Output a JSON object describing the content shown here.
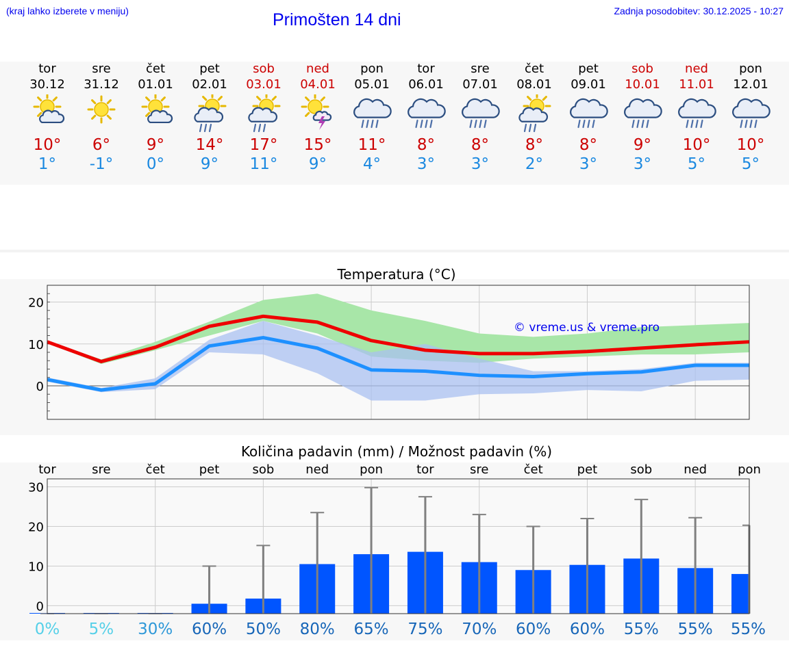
{
  "header": {
    "hint": "(kraj lahko izberete v meniju)",
    "title": "Primošten 14 dni",
    "updated": "Zadnja posodobitev: 30.12.2025 - 10:27"
  },
  "days": [
    {
      "name": "tor",
      "date": "30.12",
      "icon": "sun-cloud-icon",
      "tmax": "10°",
      "tmin": "1°",
      "weekend": false
    },
    {
      "name": "sre",
      "date": "31.12",
      "icon": "sun-icon",
      "tmax": "6°",
      "tmin": "-1°",
      "weekend": false
    },
    {
      "name": "čet",
      "date": "01.01",
      "icon": "sun-cloud-icon",
      "tmax": "9°",
      "tmin": "0°",
      "weekend": false
    },
    {
      "name": "pet",
      "date": "02.01",
      "icon": "sun-cloud-rain-icon",
      "tmax": "14°",
      "tmin": "9°",
      "weekend": false
    },
    {
      "name": "sob",
      "date": "03.01",
      "icon": "sun-cloud-rain-icon",
      "tmax": "17°",
      "tmin": "11°",
      "weekend": true
    },
    {
      "name": "ned",
      "date": "04.01",
      "icon": "sun-thunder-icon",
      "tmax": "15°",
      "tmin": "9°",
      "weekend": true
    },
    {
      "name": "pon",
      "date": "05.01",
      "icon": "cloud-rain-icon",
      "tmax": "11°",
      "tmin": "4°",
      "weekend": false
    },
    {
      "name": "tor",
      "date": "06.01",
      "icon": "cloud-rain-icon",
      "tmax": "8°",
      "tmin": "3°",
      "weekend": false
    },
    {
      "name": "sre",
      "date": "07.01",
      "icon": "cloud-rain-icon",
      "tmax": "8°",
      "tmin": "3°",
      "weekend": false
    },
    {
      "name": "čet",
      "date": "08.01",
      "icon": "sun-cloud-rain-icon",
      "tmax": "8°",
      "tmin": "2°",
      "weekend": false
    },
    {
      "name": "pet",
      "date": "09.01",
      "icon": "cloud-rain-icon",
      "tmax": "8°",
      "tmin": "3°",
      "weekend": false
    },
    {
      "name": "sob",
      "date": "10.01",
      "icon": "cloud-rain-icon",
      "tmax": "9°",
      "tmin": "3°",
      "weekend": true
    },
    {
      "name": "ned",
      "date": "11.01",
      "icon": "cloud-rain-icon",
      "tmax": "10°",
      "tmin": "5°",
      "weekend": true
    },
    {
      "name": "pon",
      "date": "12.01",
      "icon": "cloud-rain-icon",
      "tmax": "10°",
      "tmin": "5°",
      "weekend": false
    }
  ],
  "colors": {
    "max_line": "#ee0000",
    "min_line": "#1e90ff",
    "max_band": "#a8e6a8",
    "min_band": "#a9c0f0",
    "overlap_band": "#7cc4a4",
    "bar": "#0055ff",
    "errbar": "#808080",
    "weekend_text": "#cc0000",
    "min_text": "#1a88e0"
  },
  "chart_data": [
    {
      "type": "line",
      "title": "Temperatura (°C)",
      "watermark": "© vreme.us & vreme.pro",
      "x": [
        0,
        1,
        2,
        3,
        4,
        5,
        6,
        7,
        8,
        9,
        10,
        11,
        12,
        13
      ],
      "ylim": [
        -8,
        24
      ],
      "yticks": [
        0,
        10,
        20
      ],
      "series": [
        {
          "name": "max",
          "values": [
            10.5,
            5.8,
            9.2,
            14.2,
            16.6,
            15.2,
            10.8,
            8.5,
            7.7,
            7.7,
            8.2,
            9.0,
            9.8,
            10.5
          ],
          "band_low": [
            10.2,
            5.2,
            8.5,
            12.0,
            15.5,
            12.5,
            7.0,
            6.0,
            5.5,
            6.5,
            7.0,
            7.5,
            7.5,
            8.0
          ],
          "band_high": [
            10.8,
            6.3,
            10.5,
            15.3,
            20.5,
            22.0,
            18.0,
            15.5,
            12.5,
            11.7,
            12.5,
            14.0,
            14.5,
            15.0
          ]
        },
        {
          "name": "min",
          "values": [
            1.5,
            -1.0,
            0.5,
            9.5,
            11.5,
            9.0,
            3.8,
            3.5,
            2.5,
            2.2,
            2.9,
            3.3,
            4.9,
            4.9
          ],
          "band_low": [
            1.0,
            -1.5,
            -0.8,
            8.0,
            7.5,
            3.0,
            -3.5,
            -3.5,
            -2.0,
            -1.8,
            -1.0,
            -1.3,
            1.2,
            1.5
          ],
          "band_high": [
            2.0,
            -0.5,
            1.8,
            11.0,
            15.5,
            12.0,
            8.0,
            10.0,
            6.5,
            3.5,
            3.5,
            4.0,
            5.5,
            5.5
          ]
        }
      ]
    },
    {
      "type": "bar",
      "title": "Količina padavin (mm) / Možnost padavin (%)",
      "categories": [
        "tor",
        "sre",
        "čet",
        "pet",
        "sob",
        "ned",
        "pon",
        "tor",
        "sre",
        "čet",
        "pet",
        "sob",
        "ned",
        "pon"
      ],
      "values": [
        0,
        0,
        0,
        0.5,
        1.8,
        10.5,
        13.0,
        13.6,
        11.0,
        9.0,
        10.3,
        11.9,
        9.5,
        8.0
      ],
      "err_high": [
        0,
        0.1,
        0.1,
        10.0,
        15.2,
        23.5,
        29.8,
        27.5,
        23.0,
        20.0,
        22.0,
        26.8,
        22.2,
        20.3
      ],
      "probabilities": [
        "0%",
        "5%",
        "30%",
        "60%",
        "50%",
        "80%",
        "65%",
        "75%",
        "70%",
        "60%",
        "60%",
        "55%",
        "55%",
        "55%"
      ],
      "prob_colors": [
        "#55d0e8",
        "#55d0e8",
        "#2e98d8",
        "#1766b8",
        "#1766b8",
        "#1766b8",
        "#1766b8",
        "#1766b8",
        "#1766b8",
        "#1766b8",
        "#1766b8",
        "#1766b8",
        "#1766b8",
        "#1766b8"
      ],
      "ylim": [
        -2,
        32
      ],
      "yticks": [
        0,
        10,
        20,
        30
      ]
    }
  ]
}
